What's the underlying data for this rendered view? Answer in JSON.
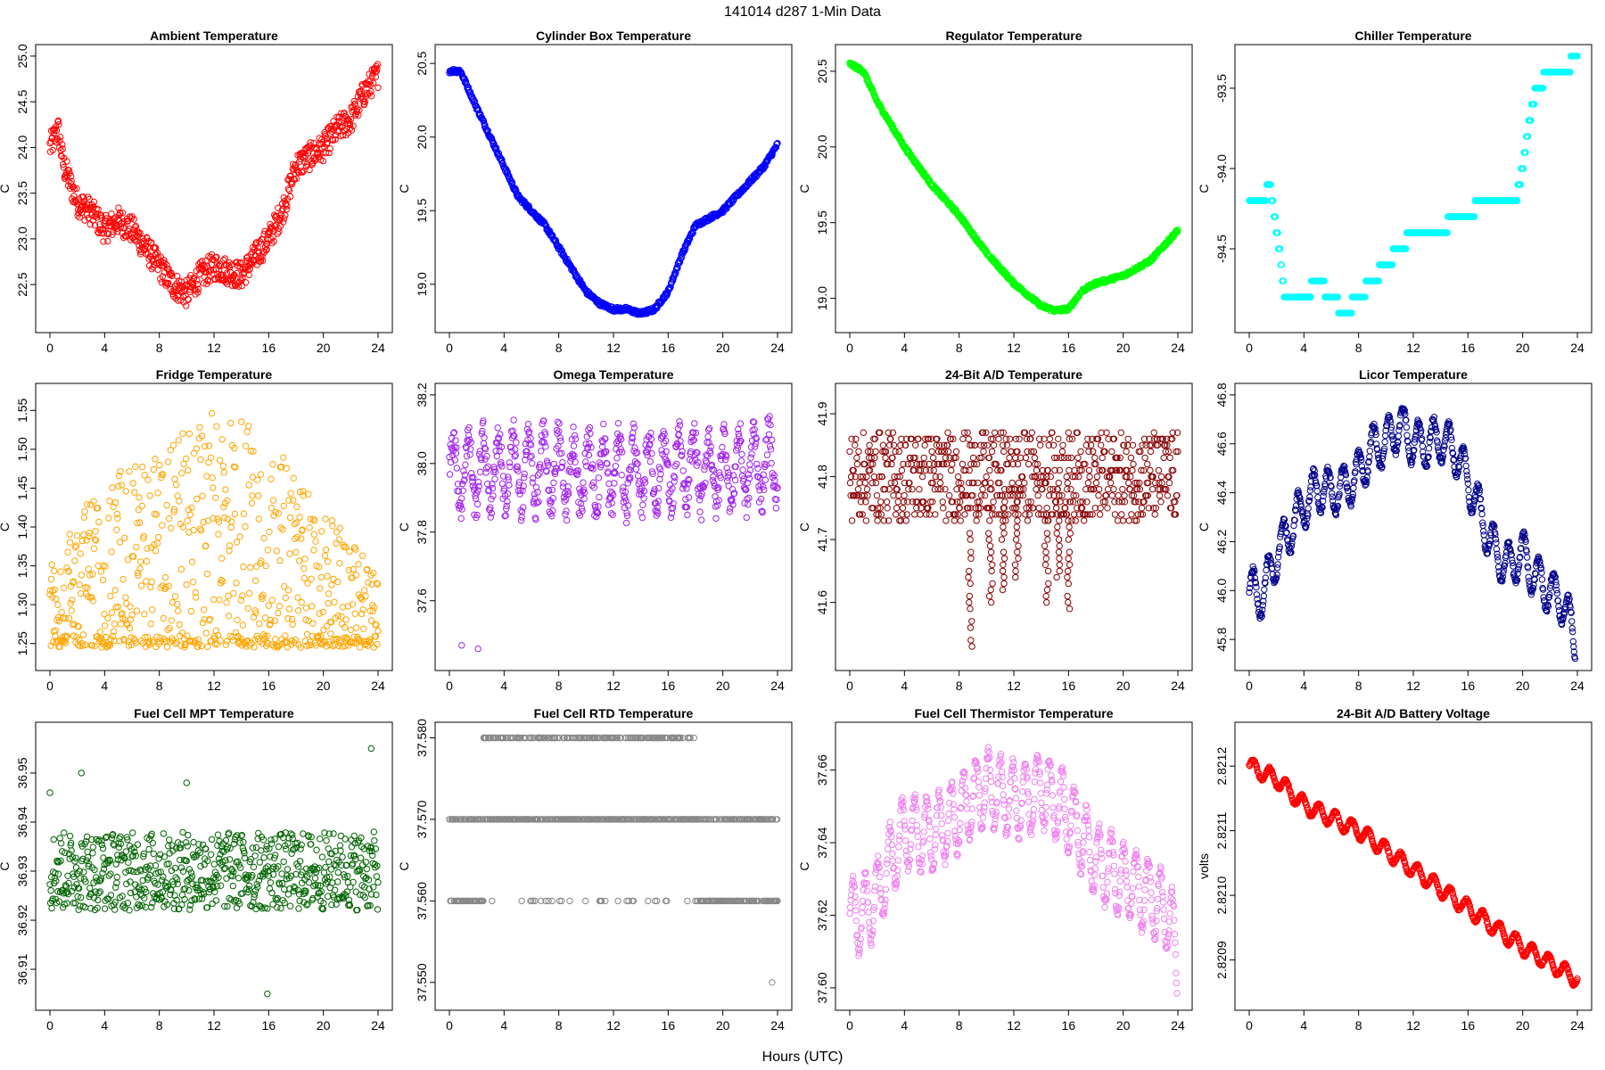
{
  "page": {
    "main_title": "141014   d287   1-Min Data",
    "x_label": "Hours (UTC)"
  },
  "chart_data": [
    {
      "type": "scatter",
      "title": "Ambient Temperature",
      "ylabel": "C",
      "color": "#ff0000",
      "xlim": [
        0,
        24
      ],
      "xticks": [
        "0",
        "4",
        "8",
        "12",
        "16",
        "20",
        "24"
      ],
      "ylim": [
        22.1,
        25.0
      ],
      "yticks": [
        "22.5",
        "23.0",
        "23.5",
        "24.0",
        "24.5",
        "25.0"
      ],
      "trend": [
        [
          0,
          24.0
        ],
        [
          0.6,
          24.2
        ],
        [
          1,
          23.8
        ],
        [
          2,
          23.4
        ],
        [
          3,
          23.3
        ],
        [
          4,
          23.1
        ],
        [
          5,
          23.2
        ],
        [
          6,
          23.1
        ],
        [
          7,
          22.9
        ],
        [
          8,
          22.7
        ],
        [
          9,
          22.5
        ],
        [
          10,
          22.4
        ],
        [
          11,
          22.6
        ],
        [
          12,
          22.7
        ],
        [
          13,
          22.65
        ],
        [
          14,
          22.6
        ],
        [
          15,
          22.8
        ],
        [
          16,
          23.0
        ],
        [
          17,
          23.3
        ],
        [
          18,
          23.8
        ],
        [
          19,
          23.9
        ],
        [
          20,
          24.0
        ],
        [
          21,
          24.2
        ],
        [
          22,
          24.3
        ],
        [
          23,
          24.6
        ],
        [
          24,
          24.8
        ]
      ],
      "spread": 0.15
    },
    {
      "type": "scatter",
      "title": "Cylinder Box Temperature",
      "ylabel": "C",
      "color": "#0000ff",
      "xlim": [
        0,
        24
      ],
      "xticks": [
        "0",
        "4",
        "8",
        "12",
        "16",
        "20",
        "24"
      ],
      "ylim": [
        18.75,
        20.55
      ],
      "yticks": [
        "19.0",
        "19.5",
        "20.0",
        "20.5"
      ],
      "trend": [
        [
          0,
          20.45
        ],
        [
          0.8,
          20.45
        ],
        [
          2,
          20.2
        ],
        [
          4,
          19.8
        ],
        [
          5,
          19.6
        ],
        [
          6,
          19.5
        ],
        [
          7,
          19.4
        ],
        [
          8,
          19.25
        ],
        [
          9,
          19.1
        ],
        [
          10,
          18.95
        ],
        [
          11,
          18.87
        ],
        [
          12,
          18.83
        ],
        [
          13,
          18.83
        ],
        [
          14,
          18.8
        ],
        [
          15,
          18.83
        ],
        [
          16,
          18.95
        ],
        [
          17,
          19.2
        ],
        [
          18,
          19.4
        ],
        [
          19,
          19.45
        ],
        [
          20,
          19.5
        ],
        [
          21,
          19.6
        ],
        [
          22,
          19.7
        ],
        [
          23,
          19.8
        ],
        [
          24,
          19.95
        ]
      ],
      "spread": 0.015
    },
    {
      "type": "scatter",
      "title": "Regulator Temperature",
      "ylabel": "C",
      "color": "#00ff00",
      "xlim": [
        0,
        24
      ],
      "xticks": [
        "0",
        "4",
        "8",
        "12",
        "16",
        "20",
        "24"
      ],
      "ylim": [
        18.85,
        20.6
      ],
      "yticks": [
        "19.0",
        "19.5",
        "20.0",
        "20.5"
      ],
      "trend": [
        [
          0,
          20.55
        ],
        [
          1,
          20.5
        ],
        [
          2,
          20.3
        ],
        [
          4,
          20.0
        ],
        [
          6,
          19.75
        ],
        [
          8,
          19.55
        ],
        [
          10,
          19.3
        ],
        [
          12,
          19.1
        ],
        [
          14,
          18.95
        ],
        [
          15,
          18.92
        ],
        [
          16,
          18.93
        ],
        [
          17,
          19.05
        ],
        [
          18,
          19.1
        ],
        [
          20,
          19.15
        ],
        [
          22,
          19.25
        ],
        [
          24,
          19.45
        ]
      ],
      "spread": 0.012
    },
    {
      "type": "scatter",
      "title": "Chiller Temperature",
      "ylabel": "C",
      "color": "#00ffff",
      "xlim": [
        0,
        24
      ],
      "xticks": [
        "0",
        "4",
        "8",
        "12",
        "16",
        "20",
        "24"
      ],
      "ylim": [
        -94.95,
        -93.3
      ],
      "yticks": [
        "-94.5",
        "-94.0",
        "-93.5"
      ],
      "trend": [
        [
          0,
          -94.2
        ],
        [
          1,
          -94.2
        ],
        [
          1.5,
          -94.1
        ],
        [
          2.2,
          -94.5
        ],
        [
          2.6,
          -94.8
        ],
        [
          4,
          -94.8
        ],
        [
          5,
          -94.7
        ],
        [
          6,
          -94.8
        ],
        [
          7,
          -94.9
        ],
        [
          8,
          -94.8
        ],
        [
          9,
          -94.7
        ],
        [
          10,
          -94.6
        ],
        [
          11,
          -94.5
        ],
        [
          12,
          -94.4
        ],
        [
          14,
          -94.4
        ],
        [
          15,
          -94.3
        ],
        [
          18,
          -94.2
        ],
        [
          19.5,
          -94.2
        ],
        [
          20,
          -94.0
        ],
        [
          20.5,
          -93.7
        ],
        [
          21,
          -93.5
        ],
        [
          22,
          -93.4
        ],
        [
          23,
          -93.4
        ],
        [
          24,
          -93.3
        ]
      ],
      "spread": 0.0,
      "quant": 0.1
    },
    {
      "type": "scatter",
      "title": "Fridge Temperature",
      "ylabel": "C",
      "color": "#ffa500",
      "xlim": [
        0,
        24
      ],
      "xticks": [
        "0",
        "4",
        "8",
        "12",
        "16",
        "20",
        "24"
      ],
      "ylim": [
        1.23,
        1.57
      ],
      "yticks": [
        "1.25",
        "1.30",
        "1.35",
        "1.40",
        "1.45",
        "1.50",
        "1.55"
      ],
      "trend": [
        [
          0,
          1.3
        ],
        [
          12,
          1.4
        ],
        [
          24,
          1.3
        ]
      ],
      "spread": 0.12,
      "mode": "sawtooth",
      "floor": 1.245,
      "ceiling": [
        [
          0,
          1.36
        ],
        [
          4,
          1.47
        ],
        [
          8,
          1.5
        ],
        [
          12,
          1.55
        ],
        [
          14,
          1.56
        ],
        [
          16,
          1.52
        ],
        [
          20,
          1.42
        ],
        [
          24,
          1.35
        ]
      ]
    },
    {
      "type": "scatter",
      "title": "Omega Temperature",
      "ylabel": "C",
      "color": "#a020f0",
      "xlim": [
        0,
        24
      ],
      "xticks": [
        "0",
        "4",
        "8",
        "12",
        "16",
        "20",
        "24"
      ],
      "ylim": [
        37.43,
        38.2
      ],
      "yticks": [
        "37.6",
        "37.8",
        "38.0",
        "38.2"
      ],
      "trend": [
        [
          0,
          37.98
        ],
        [
          8,
          37.98
        ],
        [
          9,
          37.97
        ],
        [
          16,
          37.98
        ],
        [
          20,
          37.98
        ],
        [
          24,
          38.0
        ]
      ],
      "spread": 0.1,
      "mode": "osc",
      "period": 1.1,
      "outliers": [
        [
          0.9,
          37.47
        ],
        [
          2.1,
          37.46
        ]
      ]
    },
    {
      "type": "scatter",
      "title": "24-Bit A/D Temperature",
      "ylabel": "C",
      "color": "#8b0000",
      "xlim": [
        0,
        24
      ],
      "xticks": [
        "0",
        "4",
        "8",
        "12",
        "16",
        "20",
        "24"
      ],
      "ylim": [
        41.51,
        41.93
      ],
      "yticks": [
        "41.6",
        "41.7",
        "41.8",
        "41.9"
      ],
      "trend": [
        [
          0,
          41.8
        ],
        [
          24,
          41.8
        ]
      ],
      "spread": 0.07,
      "quant": 0.01,
      "dips": [
        [
          8.8,
          41.53
        ],
        [
          10.3,
          41.6
        ],
        [
          11.2,
          41.62
        ],
        [
          12.2,
          41.64
        ],
        [
          14.4,
          41.6
        ],
        [
          15.2,
          41.64
        ],
        [
          16.0,
          41.59
        ]
      ]
    },
    {
      "type": "scatter",
      "title": "Licor Temperature",
      "ylabel": "C",
      "color": "#00008b",
      "xlim": [
        0,
        24
      ],
      "xticks": [
        "0",
        "4",
        "8",
        "12",
        "16",
        "20",
        "24"
      ],
      "ylim": [
        45.72,
        46.8
      ],
      "yticks": [
        "45.8",
        "46.0",
        "46.2",
        "46.4",
        "46.6",
        "46.8"
      ],
      "trend": [
        [
          0,
          46.0
        ],
        [
          1,
          45.98
        ],
        [
          2,
          46.15
        ],
        [
          3,
          46.25
        ],
        [
          4,
          46.35
        ],
        [
          5,
          46.42
        ],
        [
          6,
          46.4
        ],
        [
          7,
          46.42
        ],
        [
          8,
          46.48
        ],
        [
          9,
          46.58
        ],
        [
          10,
          46.6
        ],
        [
          11,
          46.68
        ],
        [
          12,
          46.6
        ],
        [
          13,
          46.6
        ],
        [
          14,
          46.62
        ],
        [
          15,
          46.58
        ],
        [
          16,
          46.45
        ],
        [
          17,
          46.3
        ],
        [
          18,
          46.15
        ],
        [
          19,
          46.1
        ],
        [
          20,
          46.15
        ],
        [
          21,
          46.05
        ],
        [
          22,
          46.0
        ],
        [
          23,
          45.95
        ],
        [
          24,
          45.77
        ]
      ],
      "spread": 0.0,
      "mode": "osc",
      "period": 1.1,
      "amp": 0.09
    },
    {
      "type": "scatter",
      "title": "Fuel Cell MPT Temperature",
      "ylabel": "C",
      "color": "#006400",
      "xlim": [
        0,
        24
      ],
      "xticks": [
        "0",
        "4",
        "8",
        "12",
        "16",
        "20",
        "24"
      ],
      "ylim": [
        36.904,
        36.958
      ],
      "yticks": [
        "36.91",
        "36.92",
        "36.93",
        "36.94",
        "36.95"
      ],
      "trend": [
        [
          0,
          36.93
        ],
        [
          24,
          36.93
        ]
      ],
      "spread": 0.008,
      "outliers": [
        [
          0,
          36.946
        ],
        [
          2.3,
          36.95
        ],
        [
          10,
          36.948
        ],
        [
          15.9,
          36.905
        ],
        [
          23.5,
          36.955
        ]
      ]
    },
    {
      "type": "scatter",
      "title": "Fuel Cell RTD Temperature",
      "ylabel": "C",
      "color": "#888888",
      "xlim": [
        0,
        24
      ],
      "xticks": [
        "0",
        "4",
        "8",
        "12",
        "16",
        "20",
        "24"
      ],
      "ylim": [
        37.548,
        37.5805
      ],
      "yticks": [
        "37.550",
        "37.560",
        "37.570",
        "37.580"
      ],
      "levels": [
        37.56,
        37.57,
        37.58
      ],
      "outliers": [
        [
          23.6,
          37.55
        ],
        [
          8.8,
          37.56
        ]
      ]
    },
    {
      "type": "scatter",
      "title": "Fuel Cell Thermistor Temperature",
      "ylabel": "C",
      "color": "#ee82ee",
      "xlim": [
        0,
        24
      ],
      "xticks": [
        "0",
        "4",
        "8",
        "12",
        "16",
        "20",
        "24"
      ],
      "ylim": [
        37.597,
        37.67
      ],
      "yticks": [
        "37.60",
        "37.62",
        "37.64",
        "37.66"
      ],
      "trend": [
        [
          0,
          37.62
        ],
        [
          1,
          37.62
        ],
        [
          2,
          37.625
        ],
        [
          3,
          37.635
        ],
        [
          4,
          37.643
        ],
        [
          6,
          37.642
        ],
        [
          8,
          37.648
        ],
        [
          9,
          37.652
        ],
        [
          10,
          37.655
        ],
        [
          12,
          37.652
        ],
        [
          13,
          37.652
        ],
        [
          14,
          37.655
        ],
        [
          16,
          37.648
        ],
        [
          18,
          37.635
        ],
        [
          20,
          37.63
        ],
        [
          22,
          37.625
        ],
        [
          23.5,
          37.62
        ],
        [
          24,
          37.6
        ]
      ],
      "spread": 0.0,
      "mode": "osc",
      "period": 0.9,
      "amp": 0.01
    },
    {
      "type": "scatter",
      "title": "24-Bit A/D Battery Voltage",
      "ylabel": "volts",
      "color": "#ff0000",
      "xlim": [
        0,
        24
      ],
      "xticks": [
        "0",
        "4",
        "8",
        "12",
        "16",
        "20",
        "24"
      ],
      "ylim": [
        2.82084,
        2.82125
      ],
      "yticks": [
        "2.8209",
        "2.8210",
        "2.8211",
        "2.8212"
      ],
      "trend": [
        [
          0,
          2.8212
        ],
        [
          2,
          2.82118
        ],
        [
          4,
          2.82114
        ],
        [
          8,
          2.8211
        ],
        [
          12,
          2.82104
        ],
        [
          16,
          2.82098
        ],
        [
          20,
          2.82092
        ],
        [
          24,
          2.82087
        ]
      ],
      "spread": 0.0,
      "mode": "osc",
      "period": 1.2,
      "amp": 1.2e-05
    }
  ]
}
